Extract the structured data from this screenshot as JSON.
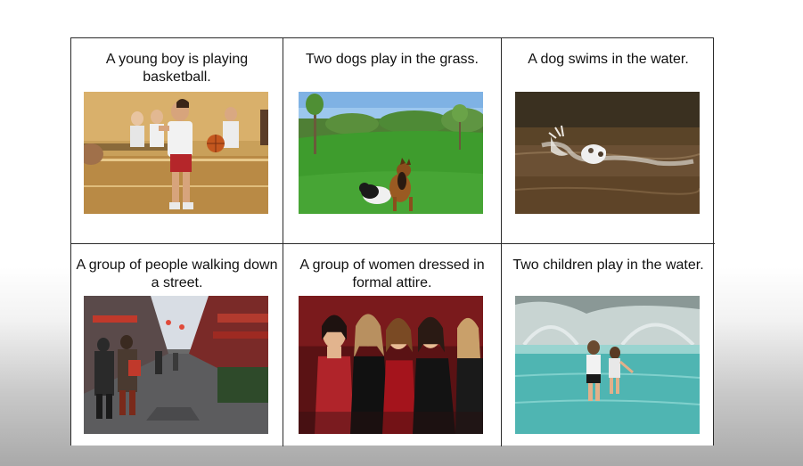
{
  "cards": [
    {
      "caption": "A young boy is playing basketball.",
      "image": "boy-basketball-photo"
    },
    {
      "caption": "Two dogs play in the grass.",
      "image": "dogs-grass-photo"
    },
    {
      "caption": "A dog swims in the water.",
      "image": "dog-swimming-photo"
    },
    {
      "caption": "A group of people walking down a street.",
      "image": "street-crowd-photo"
    },
    {
      "caption": "A group of women dressed in formal attire.",
      "image": "women-formal-photo"
    },
    {
      "caption": "Two children play in the water.",
      "image": "children-fountain-photo"
    }
  ]
}
